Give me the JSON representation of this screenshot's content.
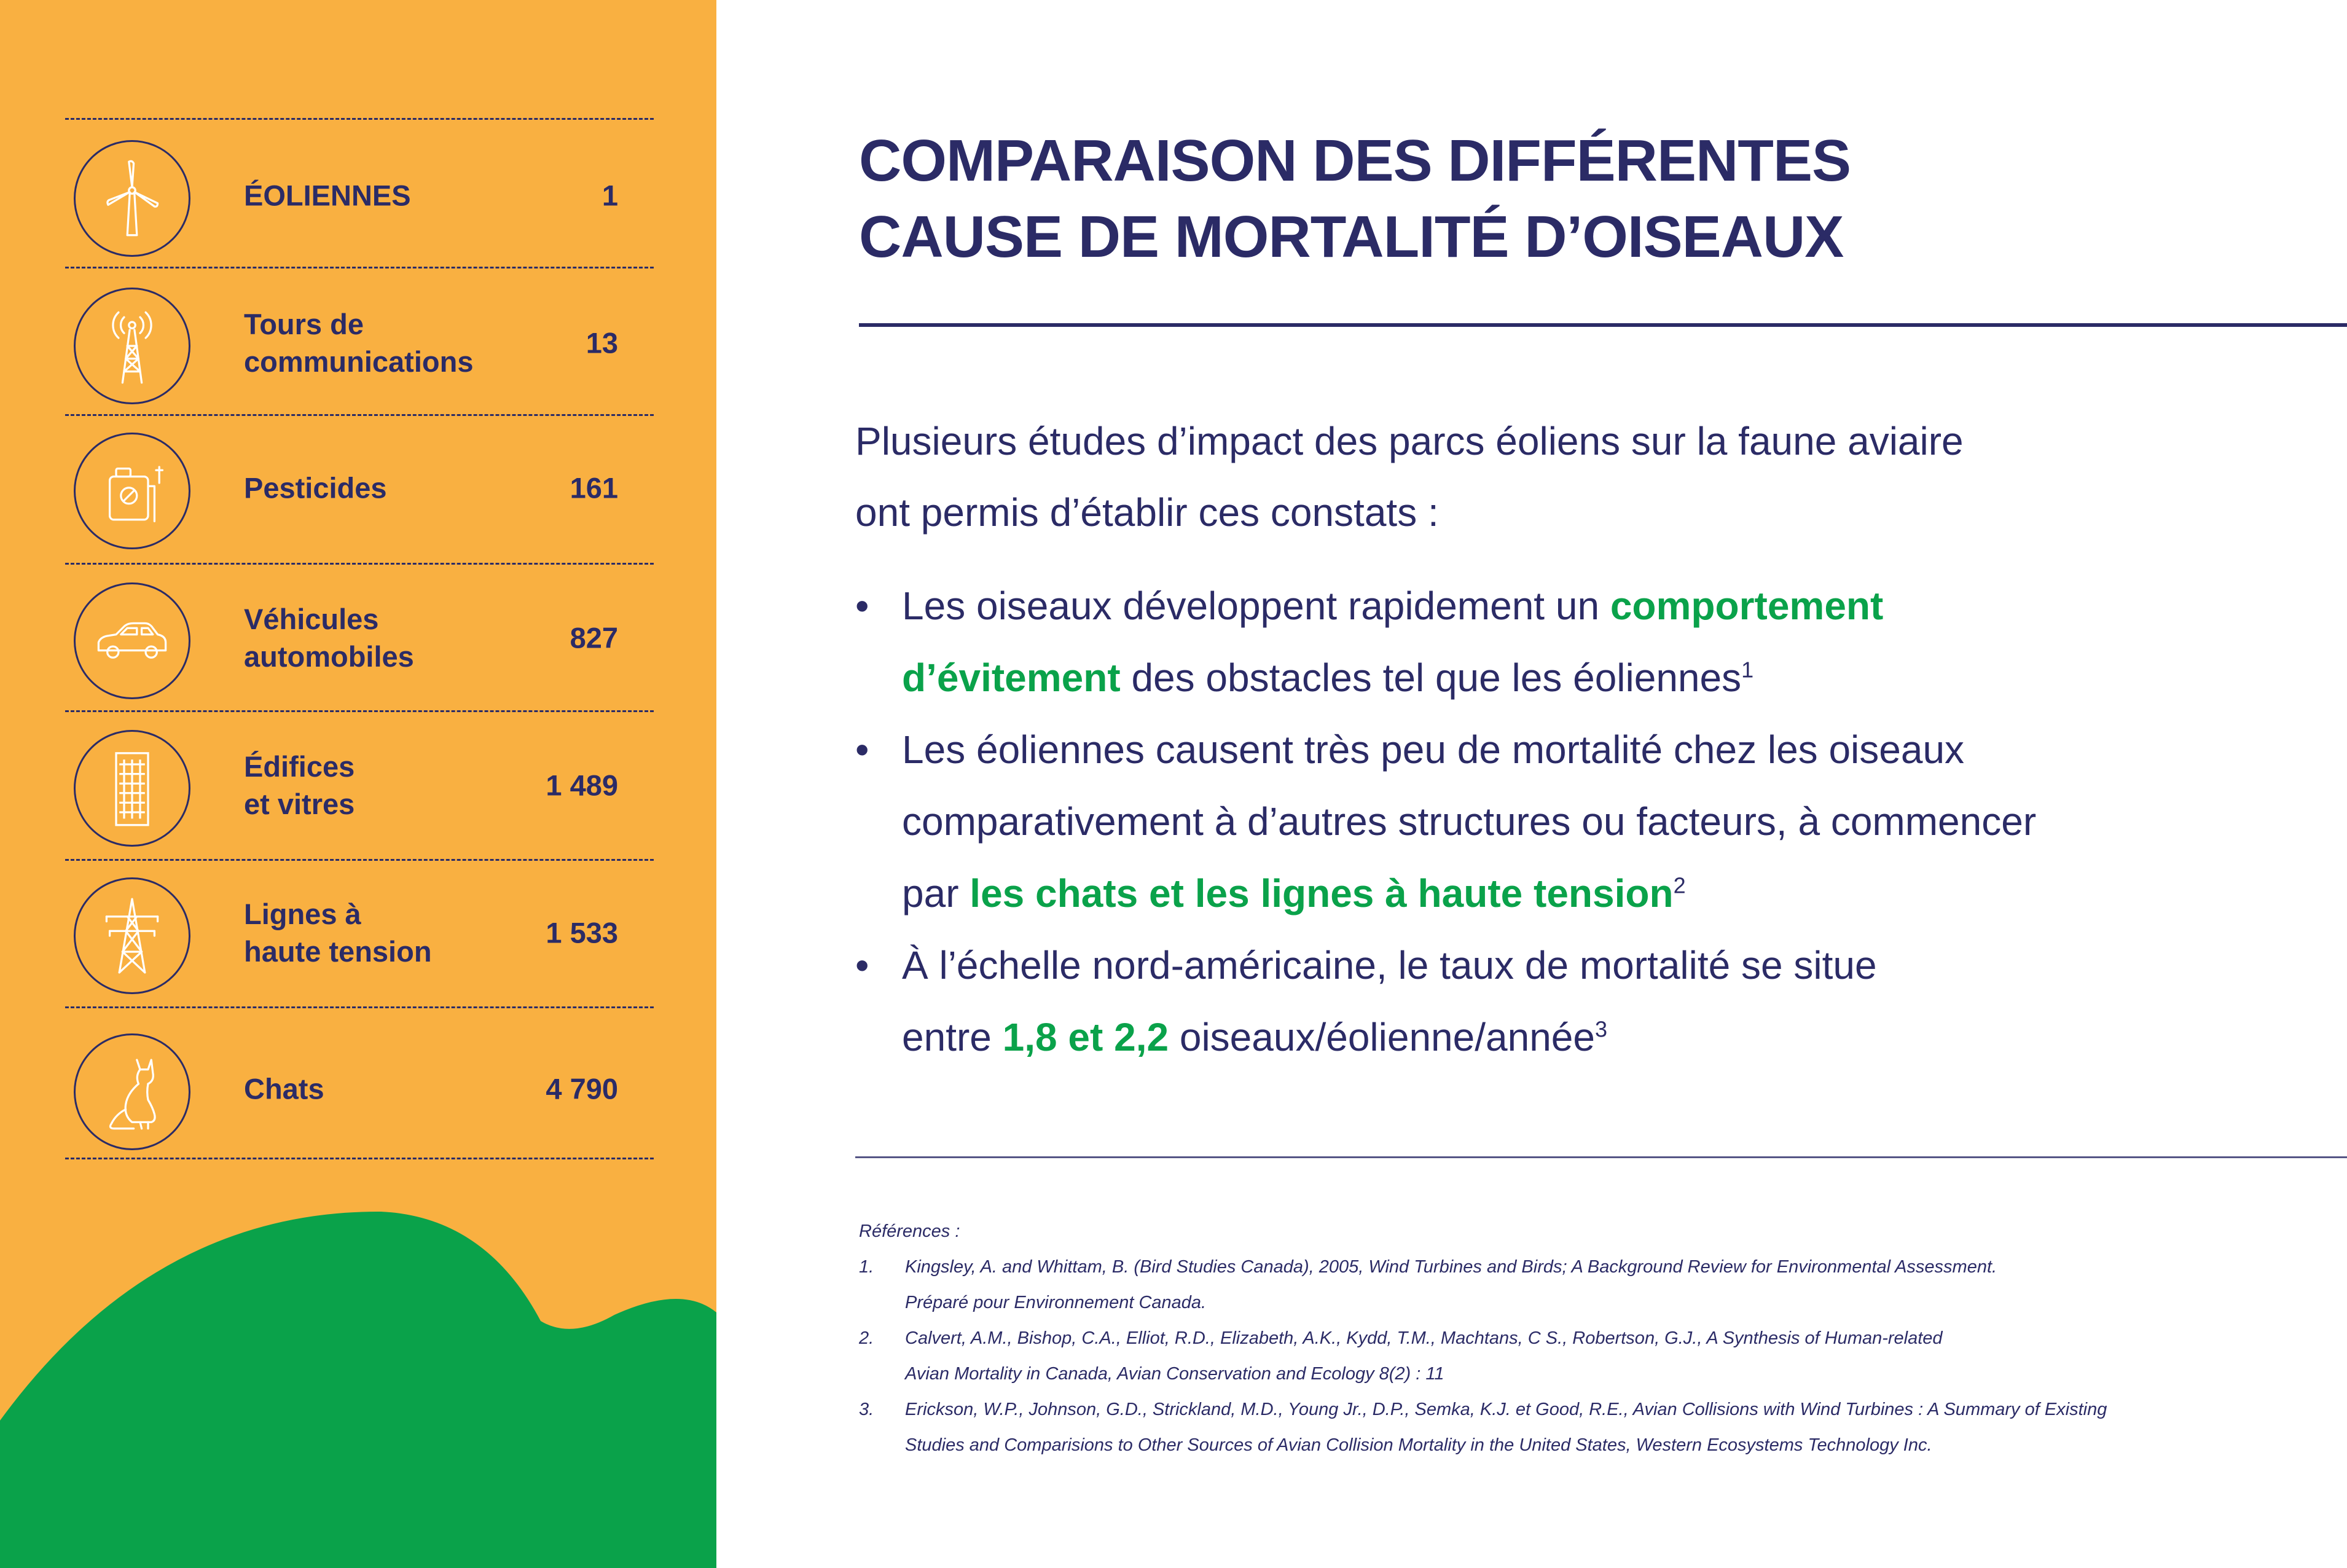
{
  "colors": {
    "navy": "#2b2b66",
    "orange": "#f9b041",
    "green": "#0aa24a",
    "white": "#ffffff"
  },
  "sidebar": {
    "items": [
      {
        "icon": "wind-turbine-icon",
        "label_lines": [
          "ÉOLIENNES"
        ],
        "value": "1"
      },
      {
        "icon": "communication-tower-icon",
        "label_lines": [
          "Tours de",
          "communications"
        ],
        "value": "13"
      },
      {
        "icon": "pesticide-sprayer-icon",
        "label_lines": [
          "Pesticides"
        ],
        "value": "161"
      },
      {
        "icon": "car-icon",
        "label_lines": [
          "Véhicules",
          "automobiles"
        ],
        "value": "827"
      },
      {
        "icon": "building-icon",
        "label_lines": [
          "Édifices",
          "et vitres"
        ],
        "value": "1 489"
      },
      {
        "icon": "power-pylon-icon",
        "label_lines": [
          "Lignes à",
          "haute tension"
        ],
        "value": "1 533"
      },
      {
        "icon": "cat-icon",
        "label_lines": [
          "Chats"
        ],
        "value": "4 790"
      }
    ]
  },
  "title": {
    "line1": "COMPARAISON DES DIFFÉRENTES",
    "line2": "CAUSE DE MORTALITÉ D’OISEAUX"
  },
  "intro": {
    "line1": "Plusieurs études d’impact des parcs éoliens sur la faune aviaire",
    "line2": "ont permis d’établir ces constats :"
  },
  "bullets": [
    {
      "text1": "Les oiseaux développent rapidement un ",
      "highlight1": "comportement",
      "highlight2": "d’évitement",
      "text2": " des obstacles tel que les éoliennes",
      "sup": "1"
    },
    {
      "line1": "Les éoliennes causent très peu de mortalité chez les oiseaux",
      "line2": "comparativement à d’autres structures ou facteurs, à commencer",
      "text3": "par ",
      "highlight": "les chats et les lignes à haute tension",
      "sup": "2"
    },
    {
      "line1": "À l’échelle nord-américaine, le taux de mortalité se situe",
      "text2": "entre ",
      "highlight": "1,8 et 2,2",
      "text3": " oiseaux/éolienne/année",
      "sup": "3"
    }
  ],
  "references": {
    "title": "Références :",
    "items": [
      {
        "num": "1.",
        "line1": "Kingsley, A. and Whittam, B. (Bird Studies Canada), 2005, Wind Turbines and Birds; A Background Review for Environmental Assessment.",
        "line2": "Préparé pour Environnement Canada."
      },
      {
        "num": "2.",
        "line1": "Calvert, A.M., Bishop, C.A., Elliot, R.D., Elizabeth, A.K., Kydd, T.M., Machtans, C S., Robertson, G.J., A Synthesis of Human-related",
        "line2": "Avian Mortality in Canada, Avian Conservation and Ecology 8(2) : 11"
      },
      {
        "num": "3.",
        "line1": "Erickson, W.P., Johnson, G.D., Strickland, M.D., Young Jr., D.P., Semka, K.J. et Good, R.E., Avian Collisions with Wind Turbines : A Summary of Existing",
        "line2": "Studies and Comparisions to Other Sources of Avian Collision Mortality in the United States, Western Ecosystems Technology Inc."
      }
    ]
  }
}
